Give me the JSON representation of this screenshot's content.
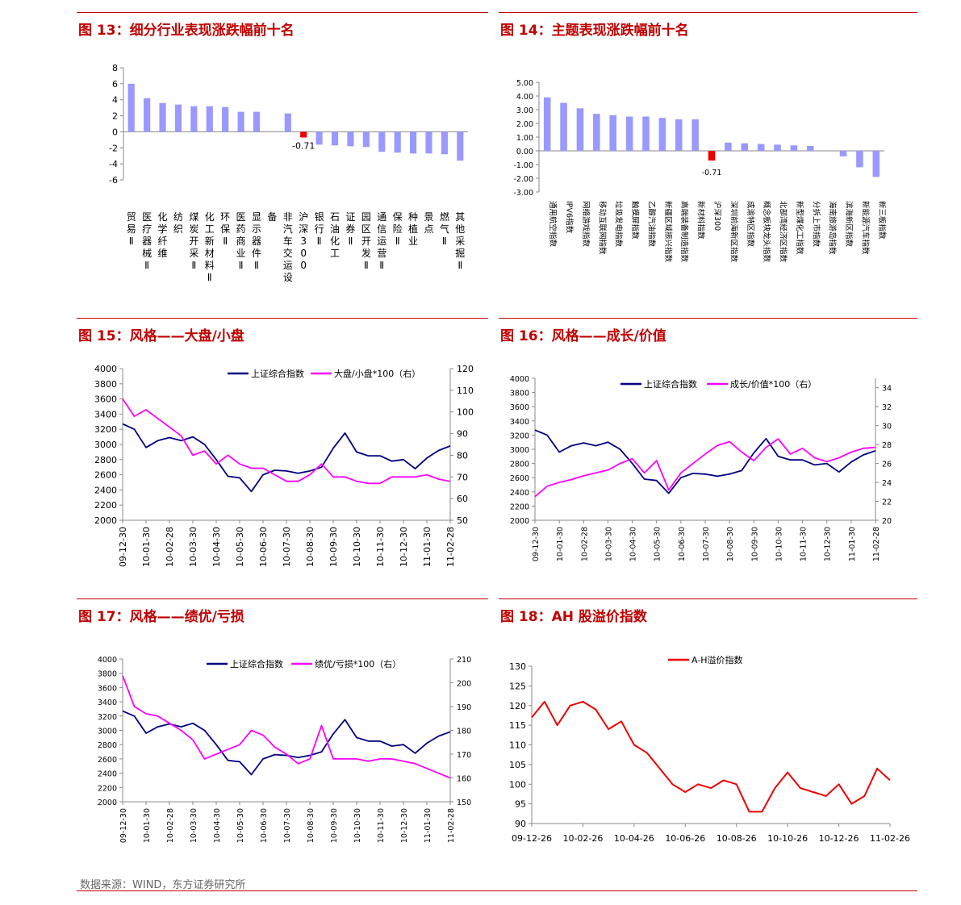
{
  "footer": {
    "source": "数据来源：WIND，东方证券研究所"
  },
  "colors": {
    "title_red": "#c00000",
    "bar_blue": "#9999ff",
    "bar_red": "#ee0000",
    "navy": "#000080",
    "magenta": "#ff00ff",
    "red_line": "#ee0000"
  },
  "chart_data": [
    {
      "id": "fig13",
      "title": "图 13：细分行业表现涨跌幅前十名",
      "type": "bar",
      "ylim": [
        -6,
        8
      ],
      "yticks": [
        "8",
        "6",
        "4",
        "2",
        "0",
        "-2",
        "-4",
        "-6"
      ],
      "categories": [
        "贸易Ⅱ",
        "医疗器械Ⅱ",
        "化学纤维",
        "纺织",
        "煤炭开采Ⅱ",
        "化工新材料Ⅱ",
        "环保Ⅱ",
        "医药商业Ⅱ",
        "显示器件Ⅱ",
        "备",
        "非汽车交运设",
        "沪深300",
        "银行Ⅱ",
        "石油化工",
        "证券Ⅱ",
        "园区开发Ⅱ",
        "通信运营Ⅱ",
        "保险Ⅱ",
        "种植业",
        "景点",
        "燃气Ⅱ",
        "其他采掘Ⅱ"
      ],
      "values": [
        6.0,
        4.2,
        3.6,
        3.4,
        3.2,
        3.2,
        3.1,
        2.5,
        2.5,
        null,
        2.3,
        -0.71,
        -1.6,
        -1.7,
        -1.8,
        -1.9,
        -2.5,
        -2.6,
        -2.7,
        -2.7,
        -2.8,
        -3.6
      ],
      "highlight_index": 11,
      "annotation": "-0.71"
    },
    {
      "id": "fig14",
      "title": "图 14：主题表现涨跌幅前十名",
      "type": "bar",
      "ylim": [
        -3,
        5
      ],
      "yticks": [
        "5.00",
        "4.00",
        "3.00",
        "2.00",
        "1.00",
        "0.00",
        "-1.00",
        "-2.00",
        "-3.00"
      ],
      "categories": [
        "通用航空指数",
        "IPV6指数",
        "网络游戏指数",
        "移动互联网指数",
        "垃圾发电指数",
        "触摸屏指数",
        "乙醇汽油指数",
        "新疆区域振兴指数",
        "高端装备制造指数",
        "新材料指数",
        "沪深300",
        "深圳前海新区指数",
        "成渝特区指数",
        "概念板块龙头指数",
        "北部湾经济区指数",
        "新型煤化工指数",
        "分拆上市指数",
        "海南旅游岛指数",
        "滨海新区指数",
        "新能源汽车指数",
        "新三板指数"
      ],
      "values": [
        3.9,
        3.5,
        3.1,
        2.7,
        2.6,
        2.5,
        2.5,
        2.4,
        2.3,
        2.3,
        -0.71,
        0.6,
        0.55,
        0.5,
        0.45,
        0.4,
        0.35,
        0.0,
        -0.4,
        -1.2,
        -1.9
      ],
      "highlight_index": 10,
      "annotation": "-0.71"
    },
    {
      "id": "fig15",
      "title": "图 15：风格——大盘/小盘",
      "type": "line",
      "x_ticks": [
        "09-12-30",
        "10-01-30",
        "10-02-28",
        "10-03-30",
        "10-04-30",
        "10-05-30",
        "10-06-30",
        "10-07-30",
        "10-08-30",
        "10-09-30",
        "10-10-30",
        "10-11-30",
        "10-12-30",
        "11-01-30",
        "11-02-28"
      ],
      "left_axis": {
        "ticks": [
          "4000",
          "3800",
          "3600",
          "3400",
          "3200",
          "3000",
          "2800",
          "2600",
          "2400",
          "2200",
          "2000"
        ],
        "ylim": [
          2000,
          4000
        ]
      },
      "right_axis": {
        "ticks": [
          "120",
          "110",
          "100",
          "90",
          "80",
          "70",
          "60",
          "50"
        ],
        "ylim": [
          50,
          120
        ]
      },
      "series": [
        {
          "name": "上证综合指数",
          "axis": "left",
          "values": [
            3270,
            3200,
            2960,
            3050,
            3090,
            3050,
            3100,
            3000,
            2800,
            2580,
            2560,
            2380,
            2600,
            2660,
            2650,
            2620,
            2650,
            2700,
            2950,
            3150,
            2900,
            2850,
            2850,
            2780,
            2800,
            2680,
            2820,
            2920,
            2980
          ]
        },
        {
          "name": "大盘/小盘*100（右）",
          "axis": "right",
          "values": [
            106,
            98,
            101,
            97,
            93,
            89,
            80,
            82,
            76,
            80,
            76,
            74,
            74,
            71,
            68,
            68,
            71,
            76,
            70,
            70,
            68,
            67,
            67,
            70,
            70,
            70,
            71,
            69,
            68
          ]
        }
      ]
    },
    {
      "id": "fig16",
      "title": "图 16：风格——成长/价值",
      "type": "line",
      "x_ticks": [
        "09-12-30",
        "10-01-30",
        "10-02-28",
        "10-03-30",
        "10-04-30",
        "10-05-30",
        "10-06-30",
        "10-07-30",
        "10-08-30",
        "10-09-30",
        "10-10-30",
        "10-11-30",
        "10-12-30",
        "11-01-30",
        "11-02-28"
      ],
      "left_axis": {
        "ticks": [
          "4000",
          "3800",
          "3600",
          "3400",
          "3200",
          "3000",
          "2800",
          "2600",
          "2400",
          "2200",
          "2000"
        ],
        "ylim": [
          2000,
          4000
        ]
      },
      "right_axis": {
        "ticks": [
          "34",
          "32",
          "30",
          "28",
          "26",
          "24",
          "22",
          "20"
        ],
        "ylim": [
          20,
          35
        ]
      },
      "series": [
        {
          "name": "上证综合指数",
          "axis": "left",
          "values": [
            3270,
            3200,
            2960,
            3050,
            3090,
            3050,
            3100,
            3000,
            2800,
            2580,
            2560,
            2380,
            2600,
            2660,
            2650,
            2620,
            2650,
            2700,
            2950,
            3150,
            2900,
            2850,
            2850,
            2780,
            2800,
            2680,
            2820,
            2920,
            2980
          ]
        },
        {
          "name": "成长/价值*100（右）",
          "axis": "right",
          "values": [
            22.5,
            23.6,
            24.0,
            24.3,
            24.7,
            25.0,
            25.3,
            26.0,
            26.5,
            25.0,
            26.3,
            23.2,
            25.0,
            26.0,
            27.0,
            27.9,
            28.3,
            27.2,
            26.3,
            27.7,
            28.6,
            27.0,
            27.6,
            26.6,
            26.2,
            26.6,
            27.2,
            27.6,
            27.7
          ]
        }
      ]
    },
    {
      "id": "fig17",
      "title": "图 17：风格——绩优/亏损",
      "type": "line",
      "x_ticks": [
        "09-12-30",
        "10-01-30",
        "10-02-28",
        "10-03-30",
        "10-04-30",
        "10-05-30",
        "10-06-30",
        "10-07-30",
        "10-08-30",
        "10-09-30",
        "10-10-30",
        "10-11-30",
        "10-12-30",
        "11-01-30",
        "11-02-28"
      ],
      "left_axis": {
        "ticks": [
          "4000",
          "3800",
          "3600",
          "3400",
          "3200",
          "3000",
          "2800",
          "2600",
          "2400",
          "2200",
          "2000"
        ],
        "ylim": [
          2000,
          4000
        ]
      },
      "right_axis": {
        "ticks": [
          "210",
          "200",
          "190",
          "180",
          "170",
          "160",
          "150"
        ],
        "ylim": [
          150,
          210
        ]
      },
      "series": [
        {
          "name": "上证综合指数",
          "axis": "left",
          "values": [
            3270,
            3200,
            2960,
            3050,
            3090,
            3050,
            3100,
            3000,
            2800,
            2580,
            2560,
            2380,
            2600,
            2660,
            2650,
            2620,
            2650,
            2700,
            2950,
            3150,
            2900,
            2850,
            2850,
            2780,
            2800,
            2680,
            2820,
            2920,
            2980
          ]
        },
        {
          "name": "绩优/亏损*100（右）",
          "axis": "right",
          "values": [
            203,
            190,
            187,
            186,
            183,
            180,
            176,
            168,
            170,
            172,
            174,
            180,
            178,
            173,
            170,
            166,
            168,
            182,
            168,
            168,
            168,
            167,
            168,
            168,
            167,
            166,
            164,
            162,
            160
          ]
        }
      ]
    },
    {
      "id": "fig18",
      "title": "图 18：AH 股溢价指数",
      "type": "line",
      "x_ticks": [
        "09-12-26",
        "10-02-26",
        "10-04-26",
        "10-06-26",
        "10-08-26",
        "10-10-26",
        "10-12-26",
        "11-02-26"
      ],
      "left_axis": {
        "ticks": [
          "130",
          "125",
          "120",
          "115",
          "110",
          "105",
          "100",
          "95",
          "90"
        ],
        "ylim": [
          90,
          130
        ]
      },
      "series": [
        {
          "name": "A-H溢价指数",
          "axis": "left",
          "values": [
            117,
            121,
            115,
            120,
            121,
            119,
            114,
            116,
            110,
            108,
            104,
            100,
            98,
            100,
            99,
            101,
            100,
            93,
            93,
            99,
            103,
            99,
            98,
            97,
            100,
            95,
            97,
            104,
            101
          ]
        }
      ]
    }
  ]
}
